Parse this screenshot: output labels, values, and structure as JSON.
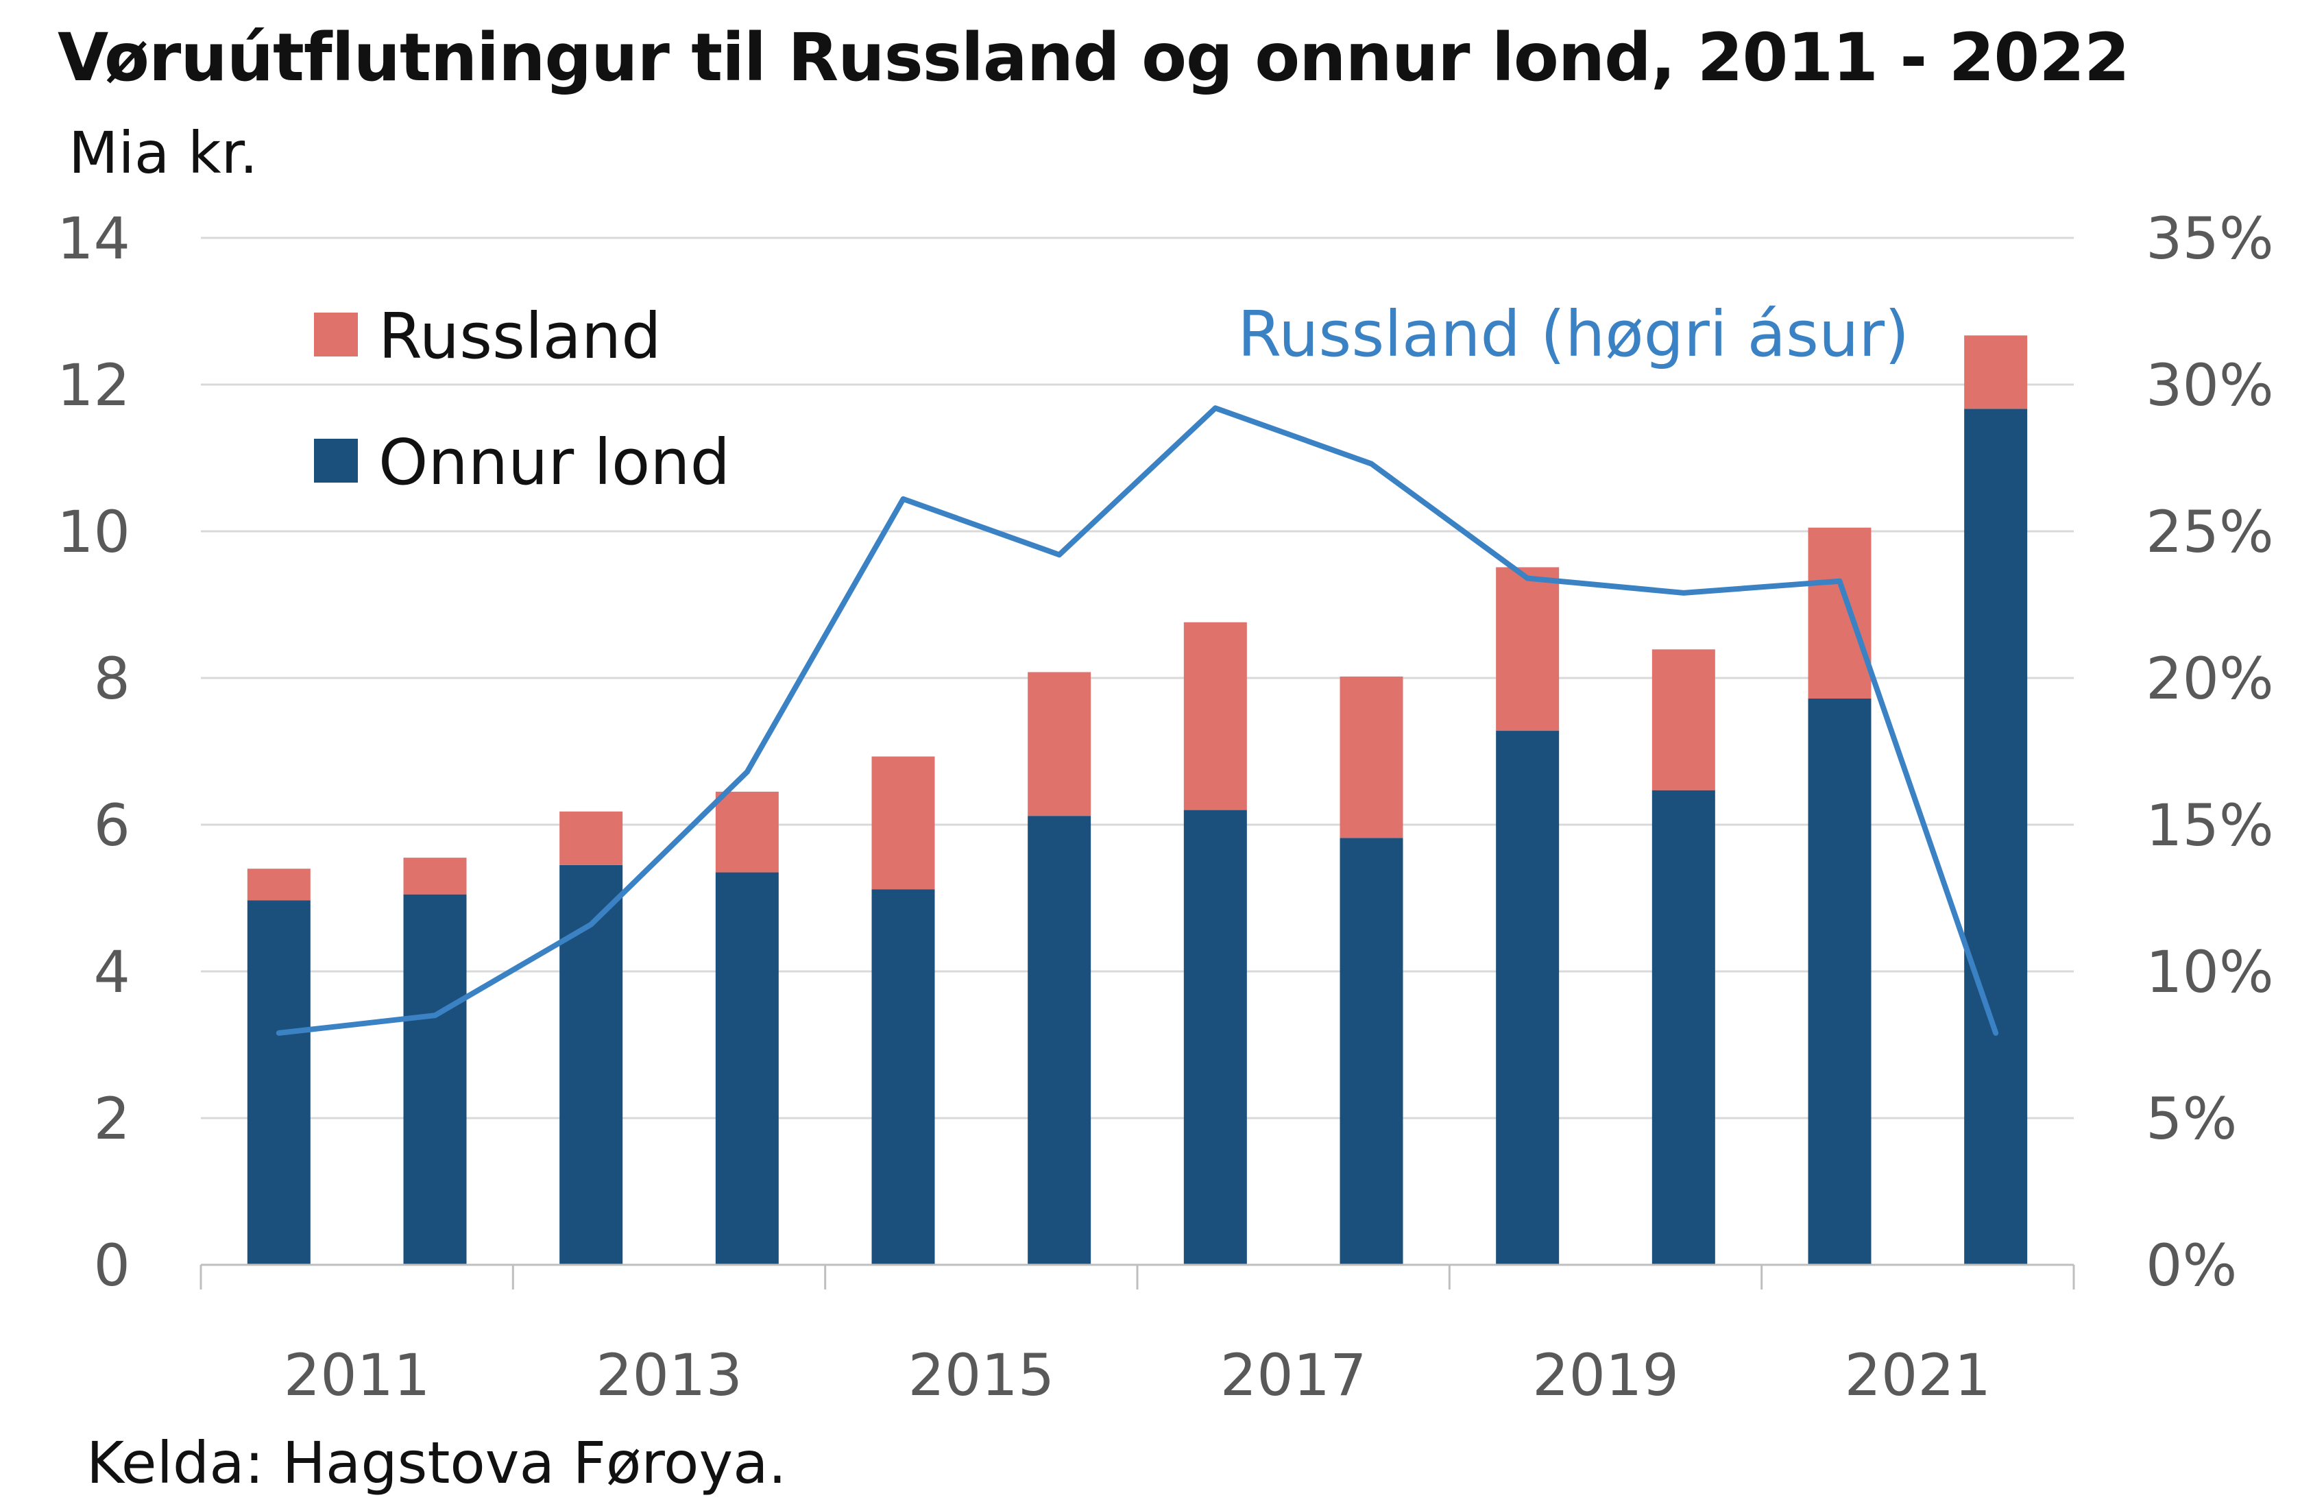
{
  "title": "Vøruútflutningur til Russland og onnur lond, 2011 - 2022",
  "source": "Kelda: Hagstova Føroya.",
  "colors": {
    "russland": "#E0726C",
    "onnur_lond": "#1B4F7C",
    "line": "#3B82C4",
    "grid": "#D9D9D9",
    "axis": "#BFBFBF"
  },
  "chart_data": {
    "type": "bar",
    "stacked": true,
    "ylabel": "Mia kr.",
    "ylim": [
      0,
      14
    ],
    "y_ticks": [
      "0",
      "2",
      "4",
      "6",
      "8",
      "10",
      "12",
      "14"
    ],
    "y2lim": [
      0,
      35
    ],
    "y2_ticks": [
      "0%",
      "5%",
      "10%",
      "15%",
      "20%",
      "25%",
      "30%",
      "35%"
    ],
    "x_tick_labels": [
      "2011",
      "2013",
      "2015",
      "2017",
      "2019",
      "2021"
    ],
    "categories": [
      "2011",
      "2012",
      "2013",
      "2014",
      "2015",
      "2016",
      "2017",
      "2018",
      "2019",
      "2020",
      "2021",
      "2022"
    ],
    "series": [
      {
        "name": "Onnur lond",
        "values": [
          4.97,
          5.05,
          5.45,
          5.35,
          5.12,
          6.12,
          6.2,
          5.82,
          7.28,
          6.47,
          7.72,
          11.67
        ]
      },
      {
        "name": "Russland",
        "values": [
          0.43,
          0.5,
          0.73,
          1.1,
          1.81,
          1.96,
          2.56,
          2.2,
          2.23,
          1.92,
          2.33,
          1.0
        ]
      }
    ],
    "line_series": {
      "name": "Russland (høgri ásur)",
      "axis": "right",
      "values": [
        7.9,
        8.5,
        11.6,
        16.8,
        26.1,
        24.2,
        29.2,
        27.3,
        23.4,
        22.9,
        23.3,
        7.9
      ]
    },
    "legend_placement": "top-left",
    "grid": true
  }
}
